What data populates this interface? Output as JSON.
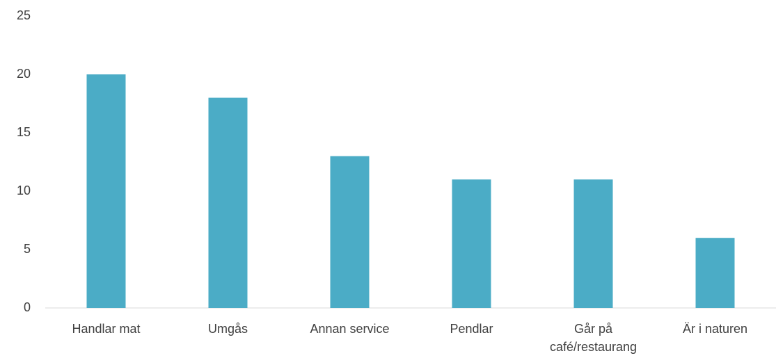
{
  "chart_data": {
    "type": "bar",
    "categories": [
      "Handlar mat",
      "Umgås",
      "Annan service",
      "Pendlar",
      "Går på café/restaurang",
      "Är i naturen"
    ],
    "values": [
      20,
      18,
      13,
      11,
      11,
      6
    ],
    "color": "#4bacc6",
    "ylim": [
      0,
      25
    ],
    "yticks": [
      0,
      5,
      10,
      15,
      20,
      25
    ],
    "grid": false
  }
}
